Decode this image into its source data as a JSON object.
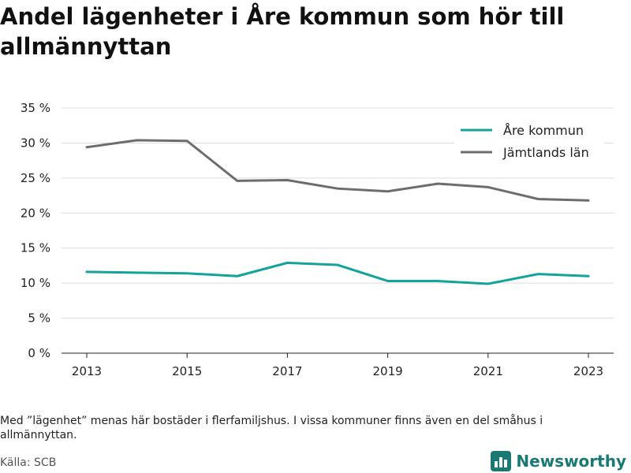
{
  "title": "Andel lägenheter i Åre kommun som hör till allmännyttan",
  "note": "Med ”lägenhet” menas här bostäder i flerfamiljshus. I vissa kommuner finns även en del småhus i allmännyttan.",
  "source": "Källa: SCB",
  "brand": "Newsworthy",
  "chart_data": {
    "type": "line",
    "title": "Andel lägenheter i Åre kommun som hör till allmännyttan",
    "x": [
      2013,
      2014,
      2015,
      2016,
      2017,
      2018,
      2019,
      2020,
      2021,
      2022,
      2023
    ],
    "x_ticks": [
      2013,
      2015,
      2017,
      2019,
      2021,
      2023
    ],
    "y_ticks": [
      0,
      5,
      10,
      15,
      20,
      25,
      30,
      35
    ],
    "y_tick_suffix": " %",
    "ylim": [
      0,
      35
    ],
    "grid": true,
    "legend": "top-right",
    "series": [
      {
        "name": "Åre kommun",
        "color": "#13a39a",
        "values": [
          11.6,
          11.5,
          11.4,
          11.0,
          12.9,
          12.6,
          10.3,
          10.3,
          9.9,
          11.3,
          11.0
        ]
      },
      {
        "name": "Jämtlands län",
        "color": "#6d6d6d",
        "values": [
          29.4,
          30.4,
          30.3,
          24.6,
          24.7,
          23.5,
          23.1,
          24.2,
          23.7,
          22.0,
          21.8
        ]
      }
    ]
  }
}
